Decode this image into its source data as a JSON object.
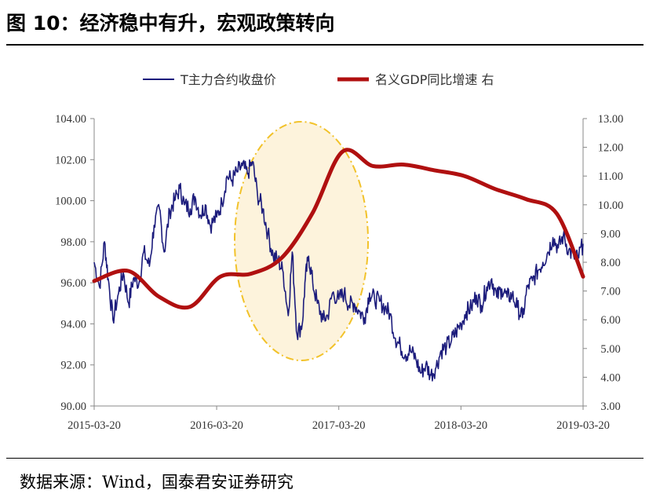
{
  "figure": {
    "title": "图 10：经济稳中有升，宏观政策转向",
    "source": "数据来源：Wind，国泰君安证券研究"
  },
  "chart_data": {
    "type": "line",
    "legend": [
      "T主力合约收盘价",
      "名义GDP同比增速 右"
    ],
    "x_ticks": [
      "2015-03-20",
      "2016-03-20",
      "2017-03-20",
      "2018-03-20",
      "2019-03-20"
    ],
    "y_left": {
      "lim": [
        90,
        104
      ],
      "ticks": [
        "90.00",
        "92.00",
        "94.00",
        "96.00",
        "98.00",
        "100.00",
        "102.00",
        "104.00"
      ]
    },
    "y_right": {
      "lim": [
        3,
        13
      ],
      "ticks": [
        "3.00",
        "4.00",
        "5.00",
        "6.00",
        "7.00",
        "8.00",
        "9.00",
        "10.00",
        "11.00",
        "12.00",
        "13.00"
      ]
    },
    "grid": false,
    "legend_position": "top",
    "colors": {
      "series1": "#1c1c7c",
      "series2": "#b01010",
      "highlight_fill": "#fdf3dc",
      "highlight_stroke": "#f2c22a"
    },
    "series": [
      {
        "name": "T主力合约收盘价",
        "axis": "left",
        "x": [
          "2015-03-20",
          "2015-04-05",
          "2015-04-20",
          "2015-05-01",
          "2015-05-15",
          "2015-06-01",
          "2015-06-15",
          "2015-07-01",
          "2015-07-15",
          "2015-08-01",
          "2015-08-15",
          "2015-09-01",
          "2015-09-15",
          "2015-10-01",
          "2015-10-15",
          "2015-11-01",
          "2015-11-15",
          "2015-12-01",
          "2015-12-15",
          "2016-01-01",
          "2016-01-15",
          "2016-02-01",
          "2016-02-15",
          "2016-03-01",
          "2016-03-20",
          "2016-04-05",
          "2016-04-20",
          "2016-05-05",
          "2016-05-20",
          "2016-06-05",
          "2016-06-20",
          "2016-07-05",
          "2016-07-20",
          "2016-08-05",
          "2016-08-20",
          "2016-09-05",
          "2016-09-20",
          "2016-10-05",
          "2016-10-20",
          "2016-11-01",
          "2016-11-15",
          "2016-12-01",
          "2016-12-10",
          "2016-12-20",
          "2017-01-01",
          "2017-01-15",
          "2017-02-01",
          "2017-02-15",
          "2017-03-01",
          "2017-03-20",
          "2017-04-05",
          "2017-04-20",
          "2017-05-05",
          "2017-05-20",
          "2017-06-05",
          "2017-06-20",
          "2017-07-05",
          "2017-07-20",
          "2017-08-05",
          "2017-08-20",
          "2017-09-05",
          "2017-09-20",
          "2017-10-05",
          "2017-10-20",
          "2017-11-05",
          "2017-11-20",
          "2017-12-05",
          "2017-12-20",
          "2018-01-05",
          "2018-01-20",
          "2018-02-05",
          "2018-02-20",
          "2018-03-05",
          "2018-03-20",
          "2018-04-05",
          "2018-04-20",
          "2018-05-05",
          "2018-05-20",
          "2018-06-05",
          "2018-06-20",
          "2018-07-05",
          "2018-07-20",
          "2018-08-05",
          "2018-08-20",
          "2018-09-05",
          "2018-09-20",
          "2018-10-05",
          "2018-10-20",
          "2018-11-05",
          "2018-11-20",
          "2018-12-05",
          "2018-12-20",
          "2019-01-05",
          "2019-01-20",
          "2019-02-05",
          "2019-02-20",
          "2019-03-05",
          "2019-03-20"
        ],
        "values": [
          97.0,
          95.8,
          98.0,
          96.2,
          94.2,
          95.5,
          96.5,
          95.0,
          96.2,
          96.0,
          97.5,
          96.8,
          98.8,
          99.6,
          97.5,
          99.5,
          100.0,
          100.6,
          99.8,
          99.6,
          100.2,
          99.3,
          99.8,
          98.8,
          99.2,
          99.9,
          101.2,
          101.0,
          101.4,
          101.7,
          101.3,
          101.9,
          100.3,
          99.6,
          98.4,
          97.3,
          97.1,
          96.5,
          94.4,
          97.5,
          93.5,
          94.0,
          96.2,
          97.3,
          96.0,
          95.0,
          94.2,
          94.4,
          95.5,
          95.2,
          95.5,
          94.9,
          95.0,
          94.6,
          94.3,
          95.5,
          95.2,
          95.1,
          94.8,
          94.5,
          93.3,
          92.9,
          92.5,
          92.7,
          92.3,
          91.6,
          92.0,
          91.5,
          91.9,
          92.7,
          92.9,
          93.2,
          93.6,
          94.0,
          94.6,
          94.8,
          95.4,
          94.9,
          95.8,
          96.2,
          95.3,
          95.7,
          95.3,
          95.4,
          94.8,
          94.3,
          95.8,
          96.1,
          96.6,
          97.0,
          97.5,
          98.2,
          97.7,
          98.3,
          97.6,
          97.3,
          97.2,
          97.9
        ]
      },
      {
        "name": "名义GDP同比增速 右",
        "axis": "right",
        "x": [
          "2015-03-20",
          "2015-06-30",
          "2015-09-30",
          "2015-12-31",
          "2016-03-31",
          "2016-06-30",
          "2016-09-30",
          "2016-12-31",
          "2017-03-31",
          "2017-06-30",
          "2017-09-30",
          "2017-12-31",
          "2018-03-31",
          "2018-06-30",
          "2018-09-30",
          "2018-12-31",
          "2019-03-20"
        ],
        "values": [
          7.35,
          7.7,
          6.8,
          6.45,
          7.5,
          7.6,
          8.15,
          9.7,
          11.85,
          11.35,
          11.4,
          11.2,
          11.0,
          10.55,
          10.2,
          9.7,
          7.5
        ]
      }
    ]
  }
}
